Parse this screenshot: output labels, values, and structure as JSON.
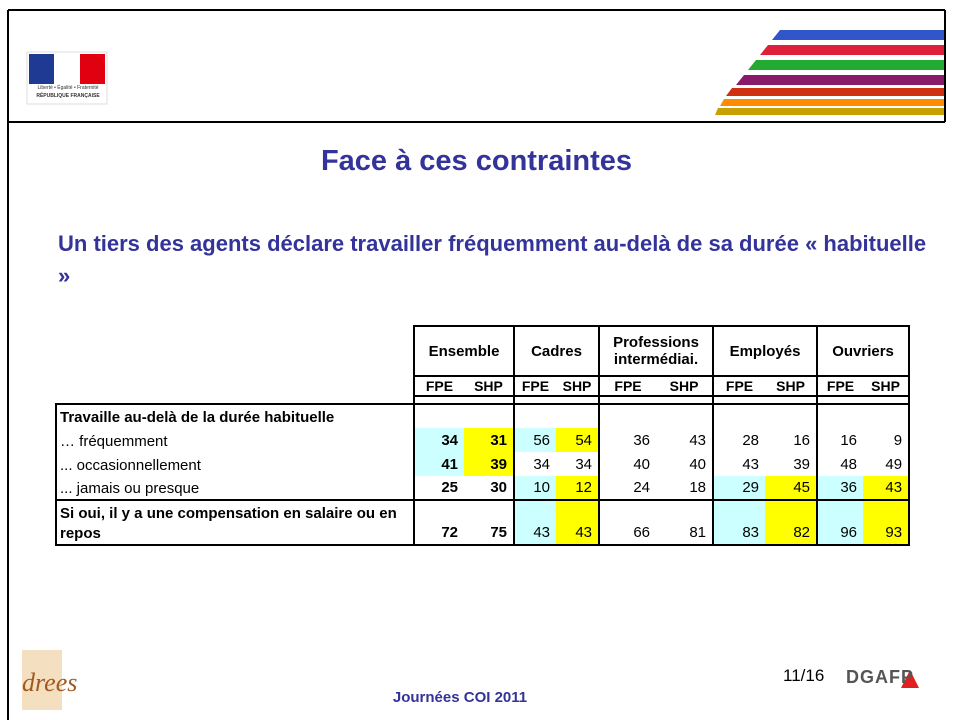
{
  "header": {
    "logo_motto": "Liberté • Égalité • Fraternité",
    "logo_name": "RÉPUBLIQUE FRANÇAISE"
  },
  "title": "Face à ces contraintes",
  "subtitle": "Un tiers des agents déclare travailler fréquemment au-delà de sa durée « habituelle »",
  "table": {
    "groups": [
      "Ensemble",
      "Cadres",
      "Professions intermédiai.",
      "Employés",
      "Ouvriers"
    ],
    "subcolumns": [
      "FPE",
      "SHP",
      "FPE",
      "SHP",
      "FPE",
      "SHP",
      "FPE",
      "SHP",
      "FPE",
      "SHP"
    ],
    "bold_columns": [
      0,
      1
    ],
    "rows": [
      {
        "label": "Travaille au-delà de la durée habituelle",
        "label_bold": true,
        "values": [],
        "fills": []
      },
      {
        "label": "… fréquemment",
        "label_bold": false,
        "values": [
          34,
          31,
          56,
          54,
          36,
          43,
          28,
          16,
          16,
          9
        ],
        "fills": [
          "#ccffff",
          "#ffff00",
          "#ccffff",
          "#ffff00",
          null,
          null,
          null,
          null,
          null,
          null
        ]
      },
      {
        "label": "... occasionnellement",
        "label_bold": false,
        "values": [
          41,
          39,
          34,
          34,
          40,
          40,
          43,
          39,
          48,
          49
        ],
        "fills": [
          "#ccffff",
          "#ffff00",
          null,
          null,
          null,
          null,
          null,
          null,
          null,
          null
        ]
      },
      {
        "label": "... jamais ou presque",
        "label_bold": false,
        "values": [
          25,
          30,
          10,
          12,
          24,
          18,
          29,
          45,
          36,
          43
        ],
        "fills": [
          null,
          null,
          "#ccffff",
          "#ffff00",
          null,
          null,
          "#ccffff",
          "#ffff00",
          "#ccffff",
          "#ffff00"
        ]
      },
      {
        "label": "Si oui, il y a une compensation en salaire ou en repos",
        "label_bold": true,
        "values": [
          72,
          75,
          43,
          43,
          66,
          81,
          83,
          82,
          96,
          93
        ],
        "fills": [
          null,
          null,
          "#ccffff",
          "#ffff00",
          null,
          null,
          "#ccffff",
          "#ffff00",
          "#ccffff",
          "#ffff00"
        ]
      }
    ]
  },
  "footer": {
    "event": "Journées COI 2011",
    "page": "11/16",
    "logo_left": "drees",
    "logo_right": "DGAFP"
  }
}
